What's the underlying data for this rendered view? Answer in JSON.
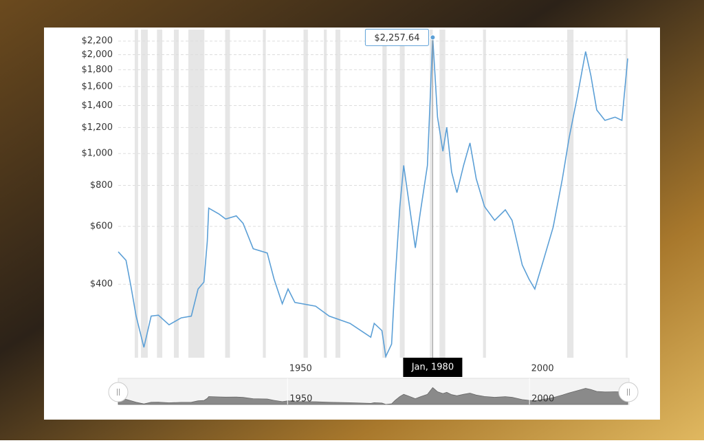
{
  "chart_data": {
    "type": "line",
    "yscale": "log",
    "grid": true,
    "xlim": [
      1915,
      2020.3
    ],
    "ylim": [
      239,
      2385
    ],
    "xticks": [
      1950,
      2000
    ],
    "yticks": [
      {
        "value": 400,
        "label": "$400"
      },
      {
        "value": 600,
        "label": "$600"
      },
      {
        "value": 800,
        "label": "$800"
      },
      {
        "value": 1000,
        "label": "$1,000"
      },
      {
        "value": 1200,
        "label": "$1,200"
      },
      {
        "value": 1400,
        "label": "$1,400"
      },
      {
        "value": 1600,
        "label": "$1,600"
      },
      {
        "value": 1800,
        "label": "$1,800"
      },
      {
        "value": 2000,
        "label": "$2,000"
      },
      {
        "value": 2200,
        "label": "$2,200"
      }
    ],
    "series": [
      {
        "color": "#5b9fd6",
        "x": [
          1915.0,
          1916.6,
          1917.6,
          1918.7,
          1920.3,
          1921.8,
          1923.3,
          1925.5,
          1928.0,
          1930.1,
          1931.5,
          1932.7,
          1933.4,
          1933.7,
          1935.8,
          1937.2,
          1939.4,
          1940.8,
          1942.9,
          1945.8,
          1947.2,
          1948.9,
          1950.1,
          1951.5,
          1955.8,
          1958.6,
          1962.9,
          1967.2,
          1967.9,
          1969.5,
          1970.3,
          1971.5,
          1972.2,
          1973.2,
          1974.0,
          1975.0,
          1976.4,
          1977.4,
          1978.9,
          1980.0,
          1980.4,
          1981.0,
          1982.1,
          1982.9,
          1983.9,
          1985.0,
          1986.4,
          1987.7,
          1989.0,
          1990.7,
          1992.8,
          1995.0,
          1996.4,
          1998.5,
          1999.9,
          2001.1,
          2002.8,
          2004.9,
          2006.8,
          2008.2,
          2009.9,
          2011.6,
          2012.7,
          2013.9,
          2015.6,
          2017.7,
          2019.1,
          2020.3
        ],
        "values": [
          502,
          473,
          396,
          320,
          257,
          320,
          322,
          301,
          316,
          320,
          387,
          406,
          540,
          682,
          655,
          632,
          646,
          613,
          513,
          498,
          415,
          349,
          387,
          352,
          343,
          320,
          304,
          276,
          304,
          289,
          241,
          263,
          406,
          690,
          920,
          725,
          516,
          656,
          920,
          2257.64,
          1811,
          1291,
          1016,
          1202,
          879,
          760,
          922,
          1077,
          838,
          690,
          626,
          674,
          626,
          458,
          415,
          387,
          469,
          597,
          838,
          1119,
          1493,
          2045,
          1726,
          1357,
          1262,
          1291,
          1262,
          1948
        ]
      }
    ],
    "recessions": [
      [
        1918.4,
        1919.1
      ],
      [
        1919.7,
        1921.1
      ],
      [
        1923.0,
        1924.1
      ],
      [
        1926.5,
        1927.5
      ],
      [
        1929.5,
        1932.8
      ],
      [
        1937.1,
        1938.1
      ],
      [
        1944.9,
        1945.5
      ],
      [
        1953.3,
        1954.2
      ],
      [
        1957.5,
        1958.1
      ],
      [
        1959.9,
        1960.9
      ],
      [
        1969.6,
        1970.5
      ],
      [
        1973.2,
        1974.2
      ],
      [
        1979.4,
        1980.0
      ],
      [
        1981.4,
        1982.6
      ],
      [
        1990.4,
        1991.0
      ],
      [
        2007.8,
        2009.1
      ],
      [
        2019.9,
        2020.3
      ]
    ],
    "tooltip": {
      "x": 1980.0,
      "x_label": "Jan, 1980",
      "value": 2257.64,
      "value_label": "$2,257.64"
    }
  }
}
